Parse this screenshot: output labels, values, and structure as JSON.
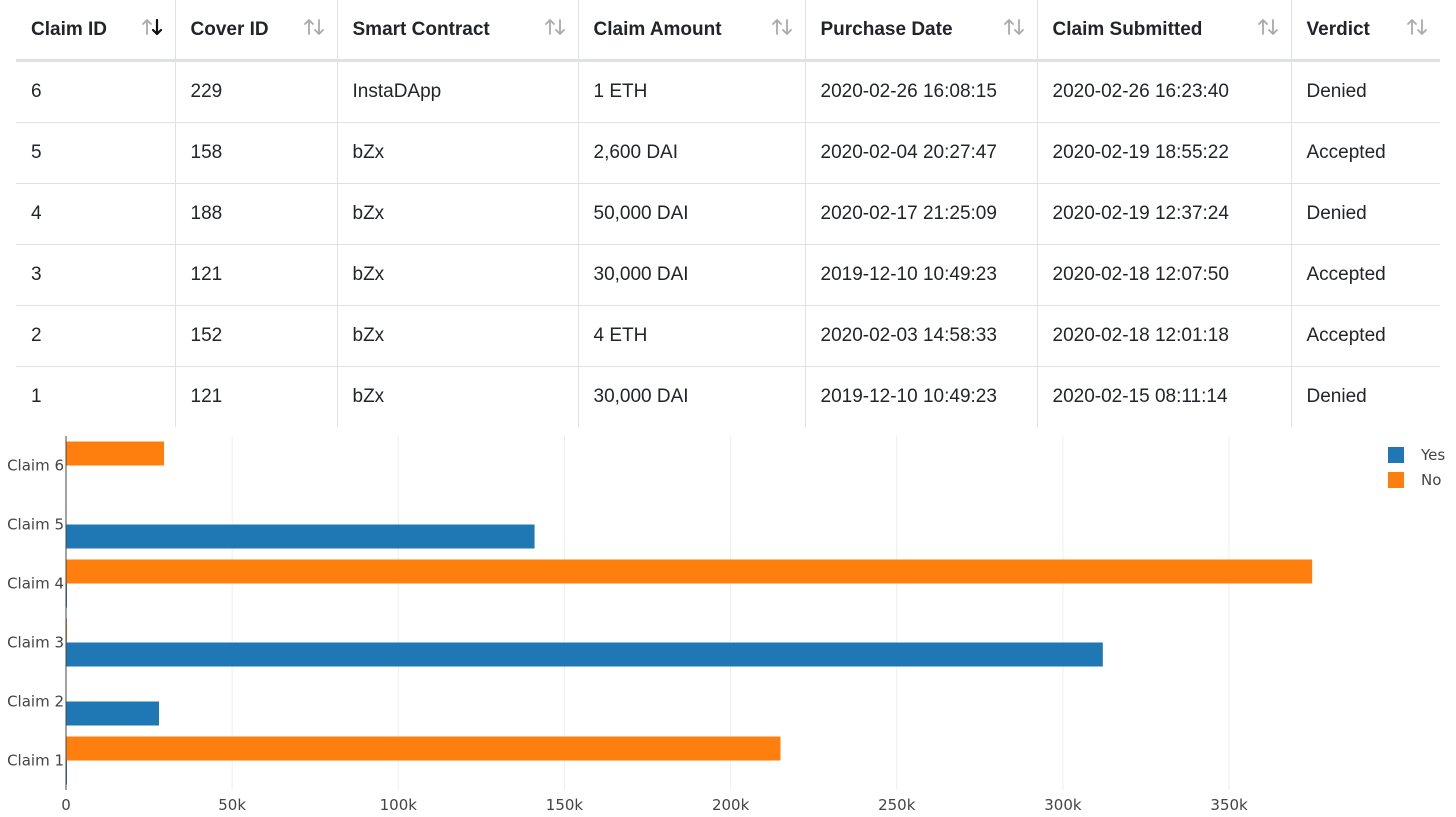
{
  "table": {
    "columns": [
      {
        "label": "Claim ID",
        "sort": "desc"
      },
      {
        "label": "Cover ID",
        "sort": "none"
      },
      {
        "label": "Smart Contract",
        "sort": "none"
      },
      {
        "label": "Claim Amount",
        "sort": "none"
      },
      {
        "label": "Purchase Date",
        "sort": "none"
      },
      {
        "label": "Claim Submitted",
        "sort": "none"
      },
      {
        "label": "Verdict",
        "sort": "none"
      }
    ],
    "rows": [
      [
        "6",
        "229",
        "InstaDApp",
        "1 ETH",
        "2020-02-26 16:08:15",
        "2020-02-26 16:23:40",
        "Denied"
      ],
      [
        "5",
        "158",
        "bZx",
        "2,600 DAI",
        "2020-02-04 20:27:47",
        "2020-02-19 18:55:22",
        "Accepted"
      ],
      [
        "4",
        "188",
        "bZx",
        "50,000 DAI",
        "2020-02-17 21:25:09",
        "2020-02-19 12:37:24",
        "Denied"
      ],
      [
        "3",
        "121",
        "bZx",
        "30,000 DAI",
        "2019-12-10 10:49:23",
        "2020-02-18 12:07:50",
        "Accepted"
      ],
      [
        "2",
        "152",
        "bZx",
        "4 ETH",
        "2020-02-03 14:58:33",
        "2020-02-18 12:01:18",
        "Accepted"
      ],
      [
        "1",
        "121",
        "bZx",
        "30,000 DAI",
        "2019-12-10 10:49:23",
        "2020-02-15 08:11:14",
        "Denied"
      ]
    ]
  },
  "chart_data": {
    "type": "bar",
    "orientation": "horizontal",
    "categories": [
      "Claim 1",
      "Claim 2",
      "Claim 3",
      "Claim 4",
      "Claim 5",
      "Claim 6"
    ],
    "series": [
      {
        "name": "Yes",
        "color": "#1f77b4",
        "values": [
          300,
          28000,
          312000,
          300,
          141000,
          0
        ]
      },
      {
        "name": "No",
        "color": "#ff7f0e",
        "values": [
          215000,
          0,
          300,
          375000,
          0,
          29500
        ]
      }
    ],
    "xlim": [
      0,
      390000
    ],
    "xticks": [
      0,
      50000,
      100000,
      150000,
      200000,
      250000,
      300000,
      350000
    ],
    "xtick_labels": [
      "0",
      "50k",
      "100k",
      "150k",
      "200k",
      "250k",
      "300k",
      "350k"
    ],
    "grid": true,
    "legend_position": "top-right"
  }
}
